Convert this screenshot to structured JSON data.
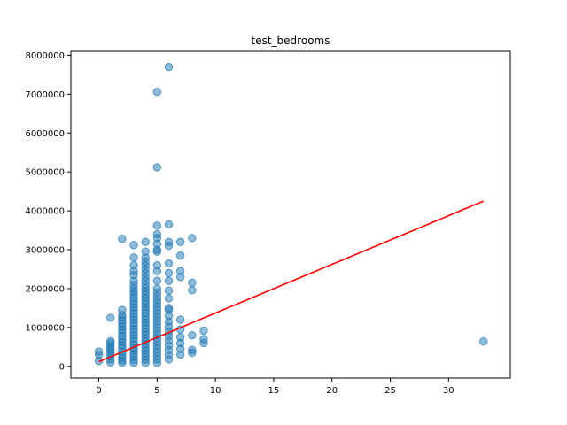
{
  "chart_data": {
    "type": "scatter",
    "title": "test_bedrooms",
    "xlabel": "",
    "ylabel": "",
    "xlim": [
      -2.4,
      35.3
    ],
    "ylim": [
      -300000,
      8100000
    ],
    "x_ticks": [
      0,
      5,
      10,
      15,
      20,
      25,
      30
    ],
    "x_tick_labels": [
      "0",
      "5",
      "10",
      "15",
      "20",
      "25",
      "30"
    ],
    "y_ticks": [
      0,
      1000000,
      2000000,
      3000000,
      4000000,
      5000000,
      6000000,
      7000000,
      8000000
    ],
    "y_tick_labels": [
      "0",
      "1000000",
      "2000000",
      "3000000",
      "4000000",
      "5000000",
      "6000000",
      "7000000",
      "8000000"
    ],
    "grid": false,
    "legend": "none",
    "colors": {
      "points": "#1f77b4",
      "fit_line": "#ff0000"
    },
    "series": [
      {
        "kind": "scatter",
        "points": [
          [
            0,
            140000
          ],
          [
            0,
            300000
          ],
          [
            0,
            380000
          ],
          [
            1,
            100000
          ],
          [
            1,
            180000
          ],
          [
            1,
            260000
          ],
          [
            1,
            330000
          ],
          [
            1,
            400000
          ],
          [
            1,
            460000
          ],
          [
            1,
            530000
          ],
          [
            1,
            600000
          ],
          [
            1,
            650000
          ],
          [
            1,
            1250000
          ],
          [
            2,
            90000
          ],
          [
            2,
            150000
          ],
          [
            2,
            220000
          ],
          [
            2,
            300000
          ],
          [
            2,
            380000
          ],
          [
            2,
            460000
          ],
          [
            2,
            540000
          ],
          [
            2,
            620000
          ],
          [
            2,
            700000
          ],
          [
            2,
            780000
          ],
          [
            2,
            860000
          ],
          [
            2,
            940000
          ],
          [
            2,
            1020000
          ],
          [
            2,
            1100000
          ],
          [
            2,
            1180000
          ],
          [
            2,
            1260000
          ],
          [
            2,
            1320000
          ],
          [
            2,
            1450000
          ],
          [
            2,
            3280000
          ],
          [
            3,
            90000
          ],
          [
            3,
            160000
          ],
          [
            3,
            240000
          ],
          [
            3,
            320000
          ],
          [
            3,
            400000
          ],
          [
            3,
            480000
          ],
          [
            3,
            560000
          ],
          [
            3,
            640000
          ],
          [
            3,
            720000
          ],
          [
            3,
            800000
          ],
          [
            3,
            880000
          ],
          [
            3,
            960000
          ],
          [
            3,
            1040000
          ],
          [
            3,
            1120000
          ],
          [
            3,
            1200000
          ],
          [
            3,
            1280000
          ],
          [
            3,
            1360000
          ],
          [
            3,
            1440000
          ],
          [
            3,
            1520000
          ],
          [
            3,
            1600000
          ],
          [
            3,
            1680000
          ],
          [
            3,
            1760000
          ],
          [
            3,
            1840000
          ],
          [
            3,
            1920000
          ],
          [
            3,
            2000000
          ],
          [
            3,
            2100000
          ],
          [
            3,
            2200000
          ],
          [
            3,
            2350000
          ],
          [
            3,
            2450000
          ],
          [
            3,
            2600000
          ],
          [
            3,
            2800000
          ],
          [
            3,
            3120000
          ],
          [
            4,
            90000
          ],
          [
            4,
            170000
          ],
          [
            4,
            250000
          ],
          [
            4,
            330000
          ],
          [
            4,
            410000
          ],
          [
            4,
            490000
          ],
          [
            4,
            570000
          ],
          [
            4,
            650000
          ],
          [
            4,
            730000
          ],
          [
            4,
            810000
          ],
          [
            4,
            890000
          ],
          [
            4,
            970000
          ],
          [
            4,
            1050000
          ],
          [
            4,
            1130000
          ],
          [
            4,
            1210000
          ],
          [
            4,
            1290000
          ],
          [
            4,
            1370000
          ],
          [
            4,
            1450000
          ],
          [
            4,
            1530000
          ],
          [
            4,
            1610000
          ],
          [
            4,
            1690000
          ],
          [
            4,
            1770000
          ],
          [
            4,
            1850000
          ],
          [
            4,
            1930000
          ],
          [
            4,
            2010000
          ],
          [
            4,
            2100000
          ],
          [
            4,
            2200000
          ],
          [
            4,
            2300000
          ],
          [
            4,
            2400000
          ],
          [
            4,
            2500000
          ],
          [
            4,
            2600000
          ],
          [
            4,
            2700000
          ],
          [
            4,
            2800000
          ],
          [
            4,
            2950000
          ],
          [
            4,
            3200000
          ],
          [
            5,
            90000
          ],
          [
            5,
            180000
          ],
          [
            5,
            270000
          ],
          [
            5,
            360000
          ],
          [
            5,
            450000
          ],
          [
            5,
            540000
          ],
          [
            5,
            630000
          ],
          [
            5,
            720000
          ],
          [
            5,
            810000
          ],
          [
            5,
            900000
          ],
          [
            5,
            990000
          ],
          [
            5,
            1080000
          ],
          [
            5,
            1170000
          ],
          [
            5,
            1260000
          ],
          [
            5,
            1350000
          ],
          [
            5,
            1440000
          ],
          [
            5,
            1530000
          ],
          [
            5,
            1620000
          ],
          [
            5,
            1710000
          ],
          [
            5,
            1800000
          ],
          [
            5,
            1900000
          ],
          [
            5,
            2000000
          ],
          [
            5,
            2200000
          ],
          [
            5,
            2450000
          ],
          [
            5,
            2600000
          ],
          [
            5,
            2950000
          ],
          [
            5,
            3000000
          ],
          [
            5,
            3150000
          ],
          [
            5,
            3300000
          ],
          [
            5,
            3400000
          ],
          [
            5,
            3620000
          ],
          [
            5,
            5120000
          ],
          [
            5,
            7060000
          ],
          [
            6,
            180000
          ],
          [
            6,
            300000
          ],
          [
            6,
            420000
          ],
          [
            6,
            540000
          ],
          [
            6,
            660000
          ],
          [
            6,
            780000
          ],
          [
            6,
            900000
          ],
          [
            6,
            1020000
          ],
          [
            6,
            1150000
          ],
          [
            6,
            1300000
          ],
          [
            6,
            1450000
          ],
          [
            6,
            1500000
          ],
          [
            6,
            1750000
          ],
          [
            6,
            1950000
          ],
          [
            6,
            2200000
          ],
          [
            6,
            2400000
          ],
          [
            6,
            2650000
          ],
          [
            6,
            3100000
          ],
          [
            6,
            3200000
          ],
          [
            6,
            3650000
          ],
          [
            6,
            7700000
          ],
          [
            7,
            300000
          ],
          [
            7,
            450000
          ],
          [
            7,
            600000
          ],
          [
            7,
            750000
          ],
          [
            7,
            950000
          ],
          [
            7,
            1200000
          ],
          [
            7,
            2300000
          ],
          [
            7,
            2450000
          ],
          [
            7,
            2850000
          ],
          [
            7,
            3200000
          ],
          [
            8,
            350000
          ],
          [
            8,
            420000
          ],
          [
            8,
            800000
          ],
          [
            8,
            1960000
          ],
          [
            8,
            2150000
          ],
          [
            8,
            3300000
          ],
          [
            9,
            600000
          ],
          [
            9,
            700000
          ],
          [
            9,
            920000
          ],
          [
            33,
            640000
          ]
        ]
      },
      {
        "kind": "fit_line",
        "points": [
          [
            0,
            120000
          ],
          [
            33,
            4250000
          ]
        ]
      }
    ]
  }
}
